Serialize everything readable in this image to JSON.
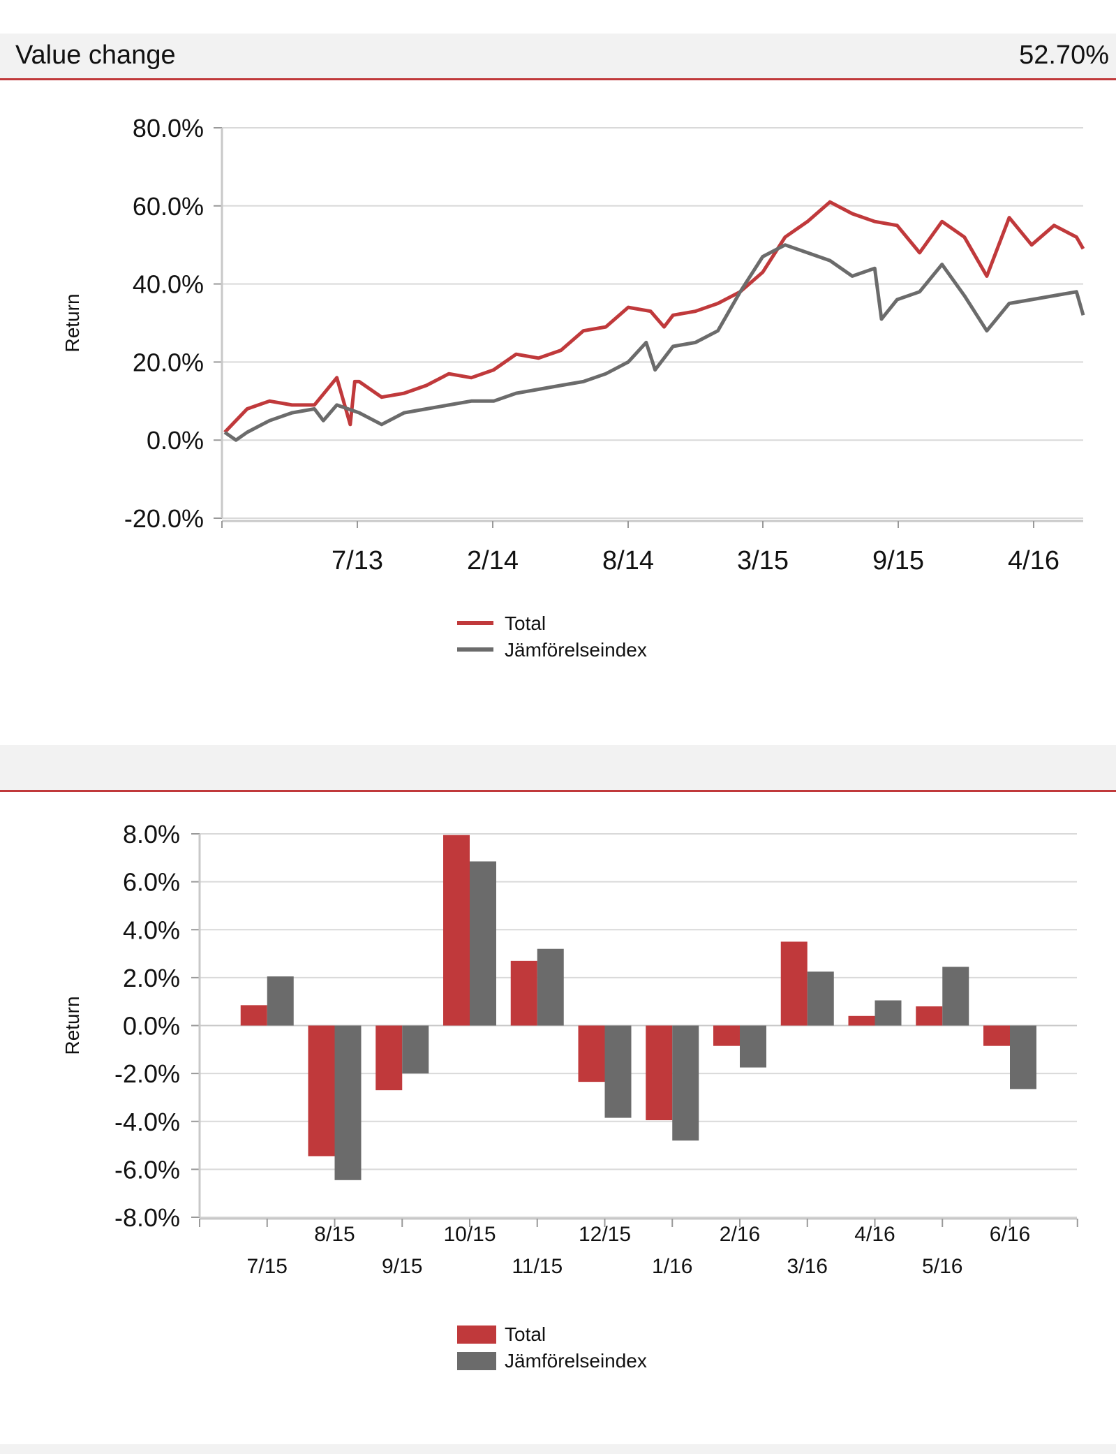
{
  "header1": {
    "title": "Value change",
    "value": "52.70%"
  },
  "header2": {
    "title": "",
    "value": ""
  },
  "colors": {
    "total": "#c0393b",
    "index": "#6b6b6b",
    "grid": "#d9d9d9",
    "accent": "#c0393b"
  },
  "chart_data": [
    {
      "type": "line",
      "title": "Value change",
      "ylabel": "Return",
      "ylim": [
        -20,
        80
      ],
      "yticks": [
        "80.0%",
        "60.0%",
        "40.0%",
        "20.0%",
        "0.0%",
        "-20.0%"
      ],
      "xticks": [
        "7/13",
        "2/14",
        "8/14",
        "3/15",
        "9/15",
        "4/16"
      ],
      "legend": [
        "Total",
        "Jämförelseindex"
      ],
      "legend_position": "bottom-center",
      "series": [
        {
          "name": "Total",
          "x": [
            0,
            1,
            2,
            3,
            4,
            5,
            5.6,
            5.8,
            6,
            7,
            8,
            9,
            10,
            11,
            12,
            13,
            14,
            15,
            16,
            17,
            18,
            19,
            19.6,
            20,
            21,
            22,
            23,
            24,
            25,
            26,
            27,
            28,
            29,
            30,
            31,
            32,
            33,
            34,
            35,
            36,
            37,
            38,
            38.3
          ],
          "y": [
            2,
            8,
            10,
            9,
            9,
            16,
            4,
            15,
            15,
            11,
            12,
            14,
            17,
            16,
            18,
            22,
            21,
            23,
            28,
            29,
            34,
            33,
            29,
            32,
            33,
            35,
            38,
            43,
            52,
            56,
            61,
            58,
            56,
            55,
            48,
            56,
            52,
            42,
            57,
            50,
            55,
            52,
            49
          ]
        },
        {
          "name": "Jämförelseindex",
          "x": [
            0,
            0.5,
            1,
            2,
            3,
            4,
            4.4,
            5,
            6,
            7,
            8,
            9,
            10,
            11,
            12,
            13,
            14,
            15,
            16,
            17,
            18,
            18.8,
            19.2,
            20,
            21,
            22,
            23,
            24,
            25,
            26,
            27,
            28,
            29,
            29.3,
            30,
            31,
            32,
            33,
            34,
            35,
            36,
            37,
            38,
            38.3
          ],
          "y": [
            2,
            0,
            2,
            5,
            7,
            8,
            5,
            9,
            7,
            4,
            7,
            8,
            9,
            10,
            10,
            12,
            13,
            14,
            15,
            17,
            20,
            25,
            18,
            24,
            25,
            28,
            38,
            47,
            50,
            48,
            46,
            42,
            44,
            31,
            36,
            38,
            45,
            37,
            28,
            35,
            36,
            37,
            38,
            32
          ]
        }
      ]
    },
    {
      "type": "bar",
      "ylabel": "Return",
      "ylim": [
        -8,
        8
      ],
      "yticks": [
        "8.0%",
        "6.0%",
        "4.0%",
        "2.0%",
        "0.0%",
        "-2.0%",
        "-4.0%",
        "-6.0%",
        "-8.0%"
      ],
      "categories": [
        "7/15",
        "8/15",
        "9/15",
        "10/15",
        "11/15",
        "12/15",
        "1/16",
        "2/16",
        "3/16",
        "4/16",
        "5/16",
        "6/16"
      ],
      "legend": [
        "Total",
        "Jämförelseindex"
      ],
      "legend_position": "bottom-center",
      "series": [
        {
          "name": "Total",
          "values": [
            0.85,
            -5.45,
            -2.7,
            7.95,
            2.7,
            -2.35,
            -3.95,
            -0.85,
            3.5,
            0.4,
            0.8,
            -0.85
          ]
        },
        {
          "name": "Jämförelseindex",
          "values": [
            2.05,
            -6.45,
            -2.0,
            6.85,
            3.2,
            -3.85,
            -4.8,
            -1.75,
            2.25,
            1.05,
            2.45,
            -2.65
          ]
        }
      ]
    }
  ]
}
